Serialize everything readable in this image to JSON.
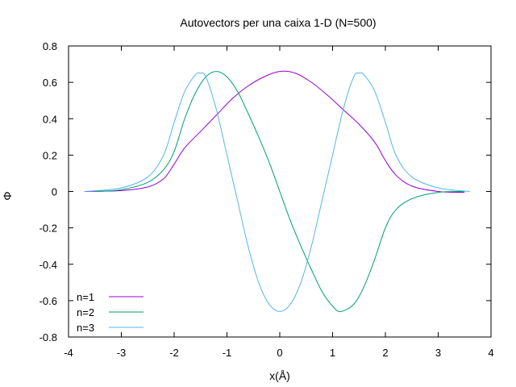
{
  "chart_data": {
    "type": "line",
    "title": "Autovectors per una caixa 1-D (N=500)",
    "xlabel": "x(Å)",
    "ylabel": "Φ",
    "xlim": [
      -4,
      4
    ],
    "ylim": [
      -0.8,
      0.8
    ],
    "grid": false,
    "legend_position": "bottom-left",
    "x_ticks": [
      -4,
      -3,
      -2,
      -1,
      0,
      1,
      2,
      3,
      4
    ],
    "x_tick_labels": [
      "-4",
      "-3",
      "-2",
      "-1",
      "0",
      "1",
      "2",
      "3",
      "4"
    ],
    "y_ticks": [
      -0.8,
      -0.6,
      -0.4,
      -0.2,
      0,
      0.2,
      0.4,
      0.6,
      0.8
    ],
    "y_tick_labels": [
      "-0.8",
      "-0.6",
      "-0.4",
      "-0.2",
      "0",
      "0.2",
      "0.4",
      "0.6",
      "0.8"
    ],
    "series": [
      {
        "name": "n=1",
        "color": "#9400d3",
        "x": [
          -3.7,
          -3.0,
          -2.5,
          -2.2,
          -2.0,
          -1.8,
          -1.5,
          -1.2,
          -0.9,
          -0.6,
          -0.3,
          0.0,
          0.3,
          0.6,
          0.9,
          1.2,
          1.5,
          1.8,
          2.0,
          2.2,
          2.5,
          3.0,
          3.5
        ],
        "y": [
          0.0,
          0.005,
          0.025,
          0.07,
          0.15,
          0.24,
          0.33,
          0.42,
          0.51,
          0.58,
          0.63,
          0.66,
          0.65,
          0.6,
          0.53,
          0.45,
          0.37,
          0.27,
          0.17,
          0.09,
          0.03,
          0.0,
          -0.005
        ]
      },
      {
        "name": "n=2",
        "color": "#009e73",
        "x": [
          -3.5,
          -3.0,
          -2.5,
          -2.2,
          -2.0,
          -1.8,
          -1.6,
          -1.4,
          -1.2,
          -1.0,
          -0.8,
          -0.6,
          -0.4,
          -0.2,
          0.0,
          0.2,
          0.4,
          0.6,
          0.8,
          1.0,
          1.15,
          1.4,
          1.6,
          1.8,
          2.0,
          2.2,
          2.5,
          3.0,
          3.5
        ],
        "y": [
          0.0,
          0.01,
          0.05,
          0.12,
          0.22,
          0.4,
          0.54,
          0.63,
          0.66,
          0.63,
          0.55,
          0.43,
          0.3,
          0.16,
          0.0,
          -0.16,
          -0.3,
          -0.43,
          -0.55,
          -0.63,
          -0.66,
          -0.62,
          -0.52,
          -0.37,
          -0.2,
          -0.1,
          -0.04,
          -0.005,
          0.0
        ]
      },
      {
        "name": "n=3",
        "color": "#56b4e9",
        "x": [
          -3.7,
          -3.0,
          -2.5,
          -2.2,
          -2.0,
          -1.8,
          -1.6,
          -1.5,
          -1.4,
          -1.2,
          -1.0,
          -0.8,
          -0.6,
          -0.4,
          -0.2,
          0.0,
          0.2,
          0.4,
          0.6,
          0.8,
          1.0,
          1.2,
          1.4,
          1.5,
          1.6,
          1.8,
          2.0,
          2.2,
          2.5,
          3.0,
          3.6
        ],
        "y": [
          0.0,
          0.02,
          0.08,
          0.2,
          0.38,
          0.55,
          0.64,
          0.65,
          0.63,
          0.45,
          0.2,
          -0.05,
          -0.3,
          -0.5,
          -0.62,
          -0.66,
          -0.62,
          -0.5,
          -0.3,
          -0.05,
          0.2,
          0.45,
          0.63,
          0.65,
          0.64,
          0.55,
          0.38,
          0.2,
          0.08,
          0.02,
          0.0
        ]
      }
    ]
  }
}
